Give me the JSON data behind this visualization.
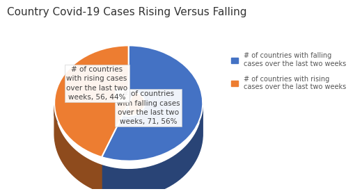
{
  "title": "Country Covid-19 Cases Rising Versus Falling",
  "slices": [
    71,
    56
  ],
  "colors": [
    "#4472C4",
    "#ED7D31"
  ],
  "shadow_color": "#1F3864",
  "shadow_color2": "#2E5090",
  "label_falling": "# of countries\nwith falling cases\nover the last two\nweeks, 71, 56%",
  "label_rising": "# of countries\nwith rising cases\nover the last two\nweeks, 56, 44%",
  "legend_labels": [
    "# of countries with falling\ncases over the last two weeks",
    "# of countries with rising\ncases over the last two weeks"
  ],
  "background_color": "#FFFFFF",
  "title_fontsize": 11,
  "label_fontsize": 7.5,
  "legend_fontsize": 7
}
